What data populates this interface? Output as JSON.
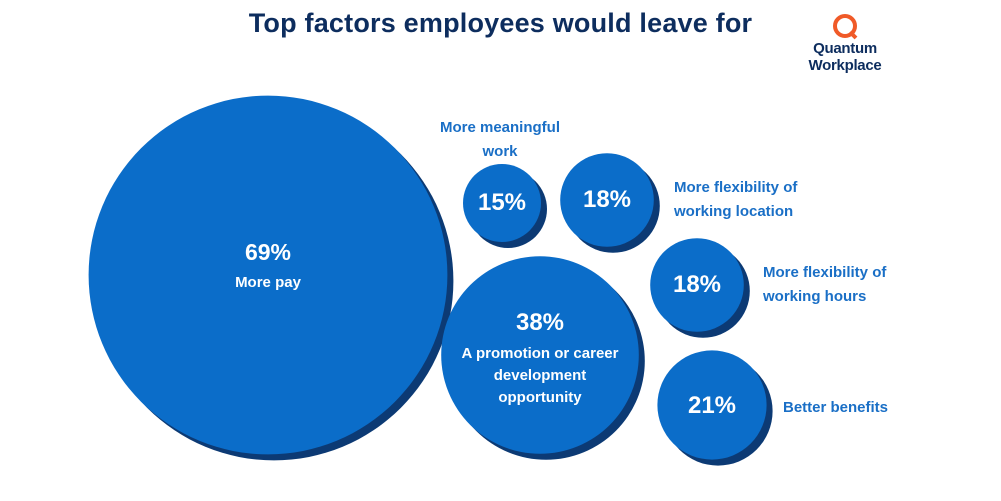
{
  "chart_data": {
    "type": "bubble",
    "title": "Top factors employees would leave for",
    "logo": "Quantum Workplace",
    "categories": [
      "More pay",
      "More meaningful work",
      "More flexibility of working location",
      "More flexibility of working hours",
      "A promotion or career development opportunity",
      "Better benefits"
    ],
    "values": [
      69,
      15,
      18,
      18,
      38,
      21
    ],
    "value_labels": [
      "69%",
      "15%",
      "18%",
      "18%",
      "38%",
      "21%"
    ],
    "color": "#0b6dc9",
    "shadow_color": "#0c3a74",
    "label_color": "#1a6fc6"
  }
}
